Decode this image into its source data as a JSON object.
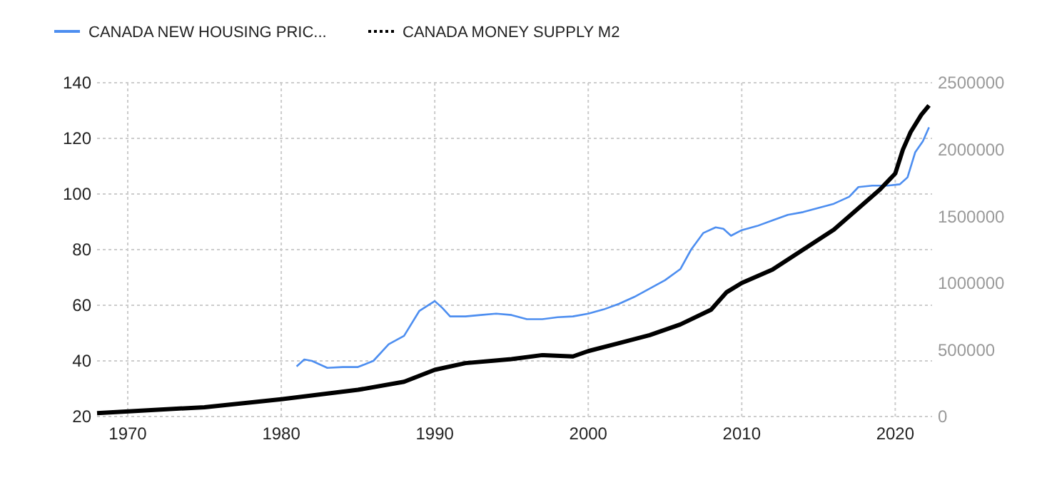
{
  "chart_data": {
    "type": "line",
    "legend": "top left",
    "grid": true,
    "xlim": [
      1968,
      2022.4
    ],
    "xticks": [
      1970,
      1980,
      1990,
      2000,
      2010,
      2020
    ],
    "ylim": [
      20,
      140
    ],
    "yticks": [
      20,
      40,
      60,
      80,
      100,
      120,
      140
    ],
    "y2lim": [
      0,
      2500000
    ],
    "y2ticks": [
      0,
      500000,
      1000000,
      1500000,
      2000000,
      2500000
    ],
    "series": [
      {
        "name": "CANADA NEW HOUSING PRIC...",
        "color": "#4d8ef0",
        "x": [
          1981,
          1981.5,
          1982,
          1983,
          1984,
          1985,
          1986,
          1987,
          1988,
          1989,
          1990,
          1990.5,
          1991,
          1992,
          1993,
          1994,
          1995,
          1996,
          1997,
          1998,
          1999,
          2000,
          2001,
          2002,
          2003,
          2004,
          2005,
          2006,
          2006.7,
          2007.5,
          2008.3,
          2008.8,
          2009.3,
          2010,
          2011,
          2012,
          2013,
          2014,
          2015,
          2016,
          2017,
          2017.6,
          2018.5,
          2019.5,
          2020.3,
          2020.8,
          2021.3,
          2021.8,
          2022.2
        ],
        "values": [
          38,
          40.5,
          40,
          37.5,
          37.8,
          37.8,
          40,
          46,
          49,
          58,
          61.5,
          59,
          56,
          56,
          56.5,
          57,
          56.5,
          55,
          55,
          55.7,
          56,
          57,
          58.5,
          60.5,
          63,
          66,
          69,
          73,
          80,
          86,
          88,
          87.5,
          85,
          87,
          88.5,
          90.5,
          92.5,
          93.5,
          95,
          96.5,
          99,
          102.5,
          103,
          103,
          103.5,
          106,
          115,
          119,
          124
        ]
      },
      {
        "name": "CANADA MONEY SUPPLY M2",
        "color": "#000000",
        "axis": "y2",
        "x": [
          1968,
          1975,
          1980,
          1985,
          1988,
          1990,
          1992,
          1995,
          1997,
          1999,
          2000,
          2002,
          2004,
          2006,
          2008,
          2009,
          2010,
          2012,
          2014,
          2016,
          2017,
          2018,
          2019,
          2020,
          2020.5,
          2021,
          2021.7,
          2022.2
        ],
        "values": [
          25000,
          70000,
          130000,
          200000,
          260000,
          350000,
          400000,
          430000,
          460000,
          450000,
          490000,
          550000,
          610000,
          690000,
          800000,
          930000,
          1000000,
          1100000,
          1250000,
          1400000,
          1500000,
          1600000,
          1700000,
          1820000,
          2000000,
          2130000,
          2260000,
          2330000
        ]
      }
    ]
  }
}
